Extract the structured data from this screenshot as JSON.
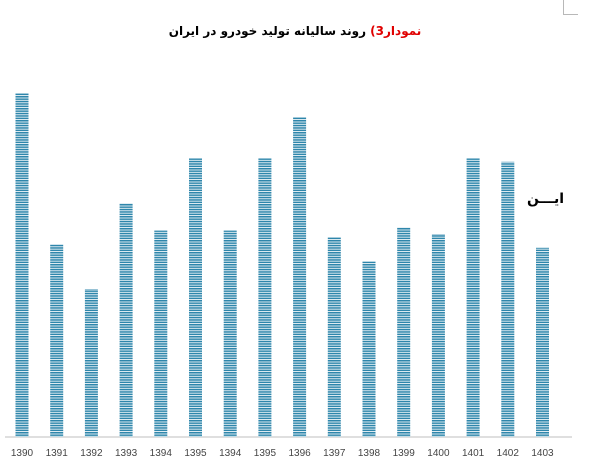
{
  "title_prefix": "نمودار3)",
  "title_text": " روند سالیانه تولید خودرو در ایران",
  "side_text": "ایـــن",
  "colors": {
    "bar": "#2e86ab",
    "bar_stripe": "#ffffff",
    "axis": "#bfbfbf",
    "title_accent": "#e00000"
  },
  "chart_data": {
    "type": "bar",
    "title": "نمودار3) روند سالیانه تولید خودرو در ایران",
    "categories": [
      "1390",
      "1391",
      "1392",
      "1393",
      "1394",
      "1395",
      "1394",
      "1395",
      "1396",
      "1397",
      "1398",
      "1399",
      "1400",
      "1401",
      "1402",
      "1403"
    ],
    "values": [
      1000,
      560,
      430,
      680,
      600,
      810,
      600,
      810,
      930,
      580,
      510,
      610,
      590,
      810,
      800,
      550
    ],
    "ylim": [
      0,
      1000
    ],
    "grid": false,
    "legend": "none"
  }
}
